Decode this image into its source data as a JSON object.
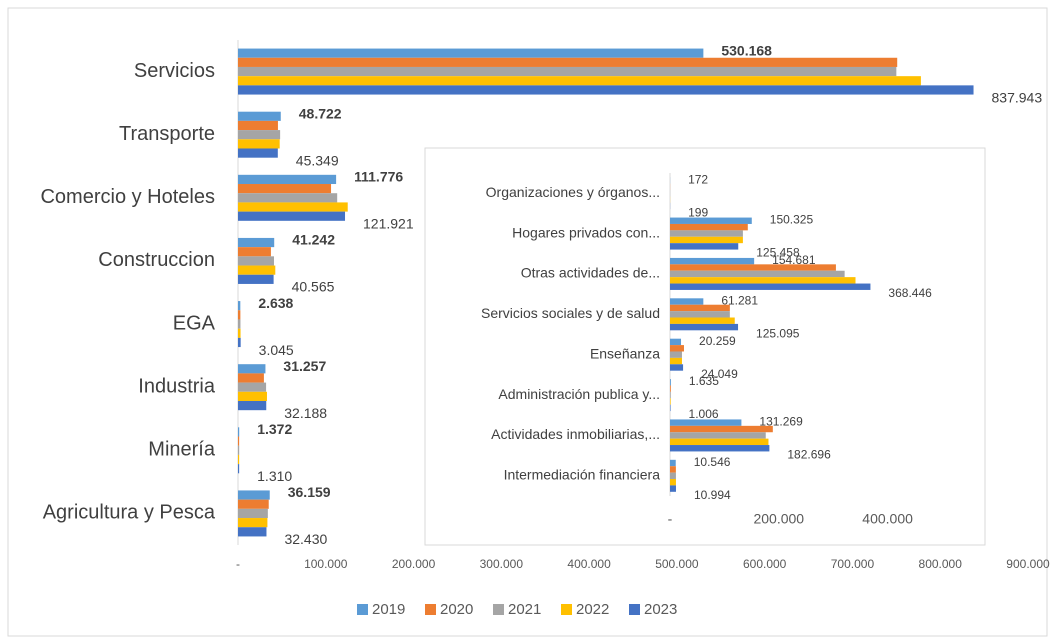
{
  "chart_data": [
    {
      "type": "bar",
      "orientation": "horizontal",
      "categories": [
        "Servicios",
        "Transporte",
        "Comercio y Hoteles",
        "Construccion",
        "EGA",
        "Industria",
        "Minería",
        "Agricultura y Pesca"
      ],
      "series": [
        {
          "name": "2019",
          "color": "#5b9bd5",
          "values": [
            530168,
            48722,
            111776,
            41242,
            2638,
            31257,
            1372,
            36159
          ],
          "value_labels": [
            "530.168",
            "48.722",
            "111.776",
            "41.242",
            "2.638",
            "31.257",
            "1.372",
            "36.159"
          ]
        },
        {
          "name": "2020",
          "color": "#ed7d31",
          "values": [
            751000,
            45500,
            106000,
            37500,
            2700,
            29500,
            1300,
            35000
          ]
        },
        {
          "name": "2021",
          "color": "#a5a5a5",
          "values": [
            750000,
            48000,
            113000,
            41000,
            2800,
            32000,
            1350,
            34000
          ]
        },
        {
          "name": "2022",
          "color": "#ffc000",
          "values": [
            778000,
            47500,
            125000,
            42500,
            2900,
            33000,
            1320,
            33500
          ]
        },
        {
          "name": "2023",
          "color": "#4472c4",
          "values": [
            837943,
            45349,
            121921,
            40565,
            3045,
            32188,
            1310,
            32430
          ],
          "value_labels": [
            "837.943",
            "45.349",
            "121.921",
            "40.565",
            "3.045",
            "32.188",
            "1.310",
            "32.430"
          ]
        }
      ],
      "xlim": [
        0,
        900000
      ],
      "xticks": [
        {
          "value": 0,
          "label": "-"
        },
        {
          "value": 100000,
          "label": "100.000"
        },
        {
          "value": 200000,
          "label": "200.000"
        },
        {
          "value": 300000,
          "label": "300.000"
        },
        {
          "value": 400000,
          "label": "400.000"
        },
        {
          "value": 500000,
          "label": "500.000"
        },
        {
          "value": 600000,
          "label": "600.000"
        },
        {
          "value": 700000,
          "label": "700.000"
        },
        {
          "value": 800000,
          "label": "800.000"
        },
        {
          "value": 900000,
          "label": "900.000"
        }
      ],
      "legend": "bottom"
    },
    {
      "type": "bar",
      "orientation": "horizontal",
      "categories": [
        "Organizaciones y órganos...",
        "Hogares privados con...",
        "Otras actividades de...",
        "Servicios sociales y de salud",
        "Enseñanza",
        "Administración publica y...",
        "Actividades inmobiliarias,...",
        "Intermediación financiera"
      ],
      "series": [
        {
          "color": "#5b9bd5",
          "values": [
            172,
            150325,
            154681,
            61281,
            20259,
            1635,
            131269,
            10546
          ],
          "value_labels": [
            "172",
            "150.325",
            "154.681",
            "61.281",
            "20.259",
            "1.635",
            "131.269",
            "10.546"
          ]
        },
        {
          "color": "#ed7d31",
          "values": [
            180,
            143000,
            305000,
            110000,
            25700,
            1500,
            189000,
            10800
          ]
        },
        {
          "color": "#a5a5a5",
          "values": [
            185,
            134000,
            321000,
            110000,
            22000,
            1400,
            176000,
            10900
          ]
        },
        {
          "color": "#ffc000",
          "values": [
            190,
            134000,
            341000,
            119000,
            22000,
            1200,
            181000,
            10950
          ]
        },
        {
          "color": "#4472c4",
          "values": [
            199,
            125458,
            368446,
            125095,
            24049,
            1006,
            182696,
            10994
          ],
          "value_labels": [
            "199",
            "125.458",
            "368.446",
            "125.095",
            "24.049",
            "1.006",
            "182.696",
            "10.994"
          ]
        }
      ],
      "xlim": [
        0,
        500000
      ],
      "xticks": [
        {
          "value": 0,
          "label": "-"
        },
        {
          "value": 200000,
          "label": "200.000"
        },
        {
          "value": 400000,
          "label": "400.000"
        }
      ]
    }
  ]
}
